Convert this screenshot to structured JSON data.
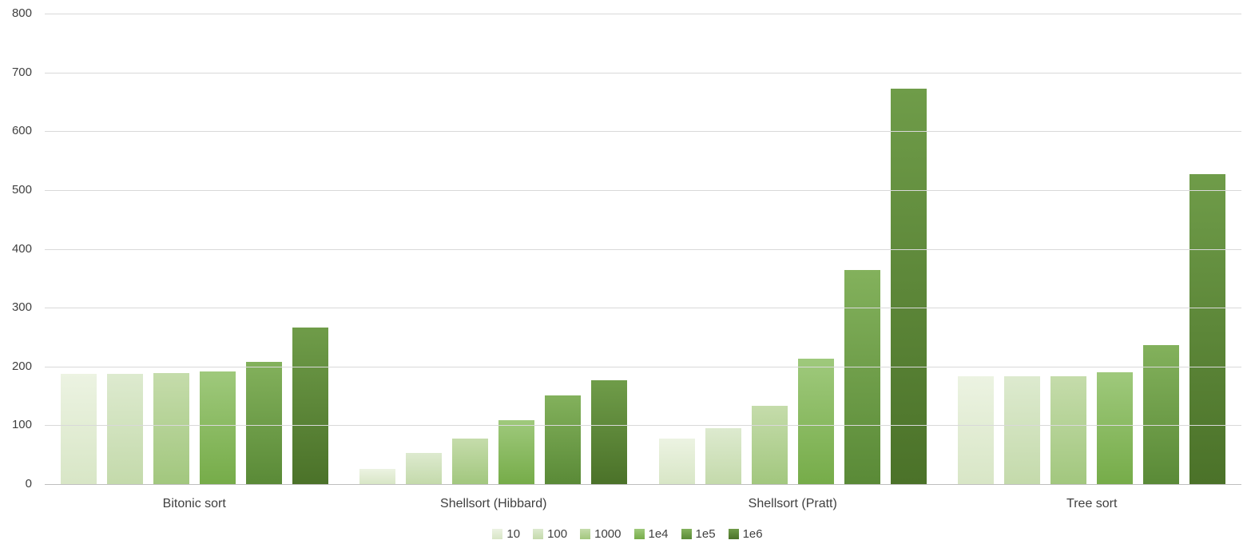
{
  "chart_data": {
    "type": "bar",
    "title": "",
    "xlabel": "",
    "ylabel": "",
    "categories": [
      "Bitonic sort",
      "Shellsort (Hibbard)",
      "Shellsort (Pratt)",
      "Tree sort"
    ],
    "series": [
      {
        "name": "10",
        "color": "#d8e6c6",
        "light": "#ecf3e2",
        "values": [
          188,
          26,
          78,
          183
        ]
      },
      {
        "name": "100",
        "color": "#c4daab",
        "light": "#ddeacf",
        "values": [
          188,
          53,
          95,
          183
        ]
      },
      {
        "name": "1000",
        "color": "#a2c77e",
        "light": "#c5dcab",
        "values": [
          189,
          78,
          133,
          184
        ]
      },
      {
        "name": "1e4",
        "color": "#76ac49",
        "light": "#9fc97c",
        "values": [
          191,
          109,
          213,
          190
        ]
      },
      {
        "name": "1e5",
        "color": "#5a8a37",
        "light": "#83b15c",
        "values": [
          208,
          151,
          364,
          236
        ]
      },
      {
        "name": "1e6",
        "color": "#4b7229",
        "light": "#6f9c49",
        "values": [
          266,
          177,
          673,
          527
        ]
      }
    ],
    "ylim": [
      0,
      800
    ],
    "yticks": [
      0,
      100,
      200,
      300,
      400,
      500,
      600,
      700,
      800
    ],
    "grid": true,
    "legend_position": "bottom"
  },
  "colors": {
    "gridline": "#d9d9d9",
    "axis_line": "#bfbfbf",
    "text": "#404040",
    "background": "#ffffff"
  }
}
